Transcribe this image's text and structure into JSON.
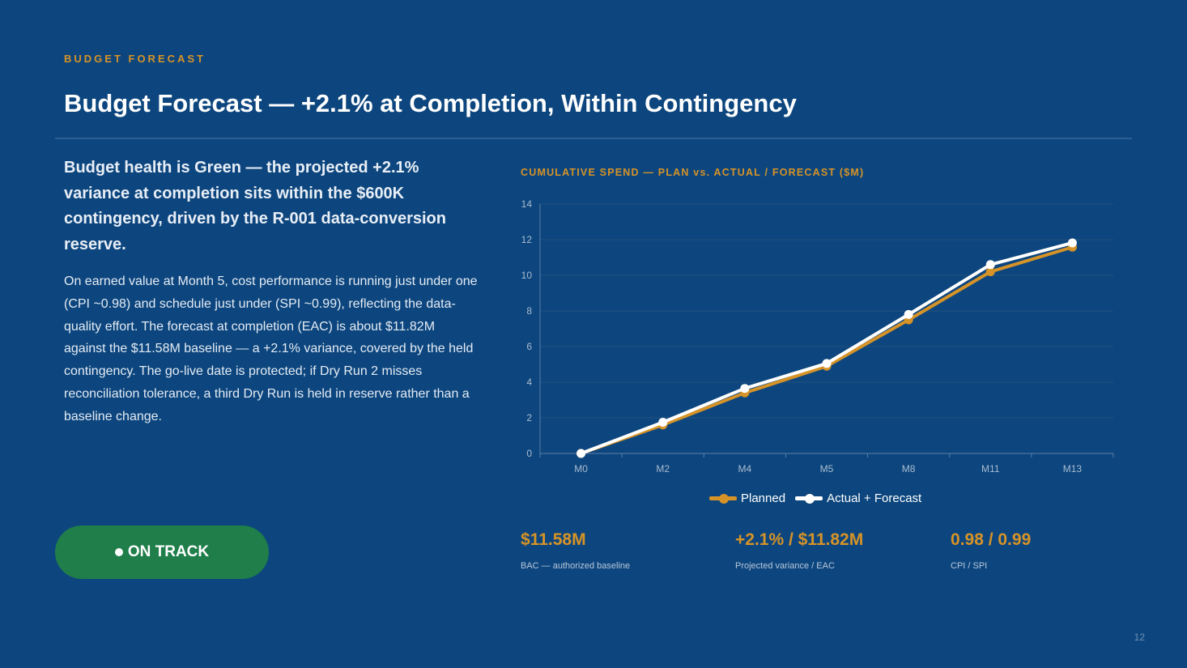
{
  "header": {
    "eyebrow": "BUDGET FORECAST",
    "title": "Budget Forecast — +2.1% at Completion, Within Contingency"
  },
  "content": {
    "lead": "Budget health is Green — the projected +2.1% variance at completion sits within the $600K contingency, driven by the R-001 data-conversion reserve.",
    "body": "On earned value at Month 5, cost performance is running just under one (CPI ~0.98) and schedule just under (SPI ~0.99), reflecting the data-quality effort. The forecast at completion (EAC) is about $11.82M against the $11.58M baseline — a +2.1% variance, covered by the held contingency. The go-live date is protected; if Dry Run 2 misses reconciliation tolerance, a third Dry Run is held in reserve rather than a baseline change."
  },
  "status": {
    "label": "ON TRACK",
    "color": "#1f7e4a"
  },
  "chart_data": {
    "type": "line",
    "title": "CUMULATIVE SPEND — PLAN vs. ACTUAL / FORECAST ($M)",
    "categories": [
      "M0",
      "M2",
      "M4",
      "M5",
      "M8",
      "M11",
      "M13"
    ],
    "series": [
      {
        "name": "Planned",
        "color": "#d69327",
        "values": [
          0,
          1.6,
          3.4,
          4.9,
          7.5,
          10.2,
          11.58
        ]
      },
      {
        "name": "Actual + Forecast",
        "color": "#ffffff",
        "values": [
          0,
          1.75,
          3.65,
          5.05,
          7.8,
          10.6,
          11.82
        ]
      }
    ],
    "yticks": [
      0,
      2,
      4,
      6,
      8,
      10,
      12,
      14
    ],
    "ylim": [
      0,
      14
    ],
    "grid": true,
    "legend": "bottom"
  },
  "kpis": [
    {
      "value": "$11.58M",
      "label": "BAC — authorized baseline"
    },
    {
      "value": "+2.1% / $11.82M",
      "label": "Projected variance / EAC"
    },
    {
      "value": "0.98 / 0.99",
      "label": "CPI / SPI"
    }
  ],
  "footer": {
    "page_number": "12"
  }
}
